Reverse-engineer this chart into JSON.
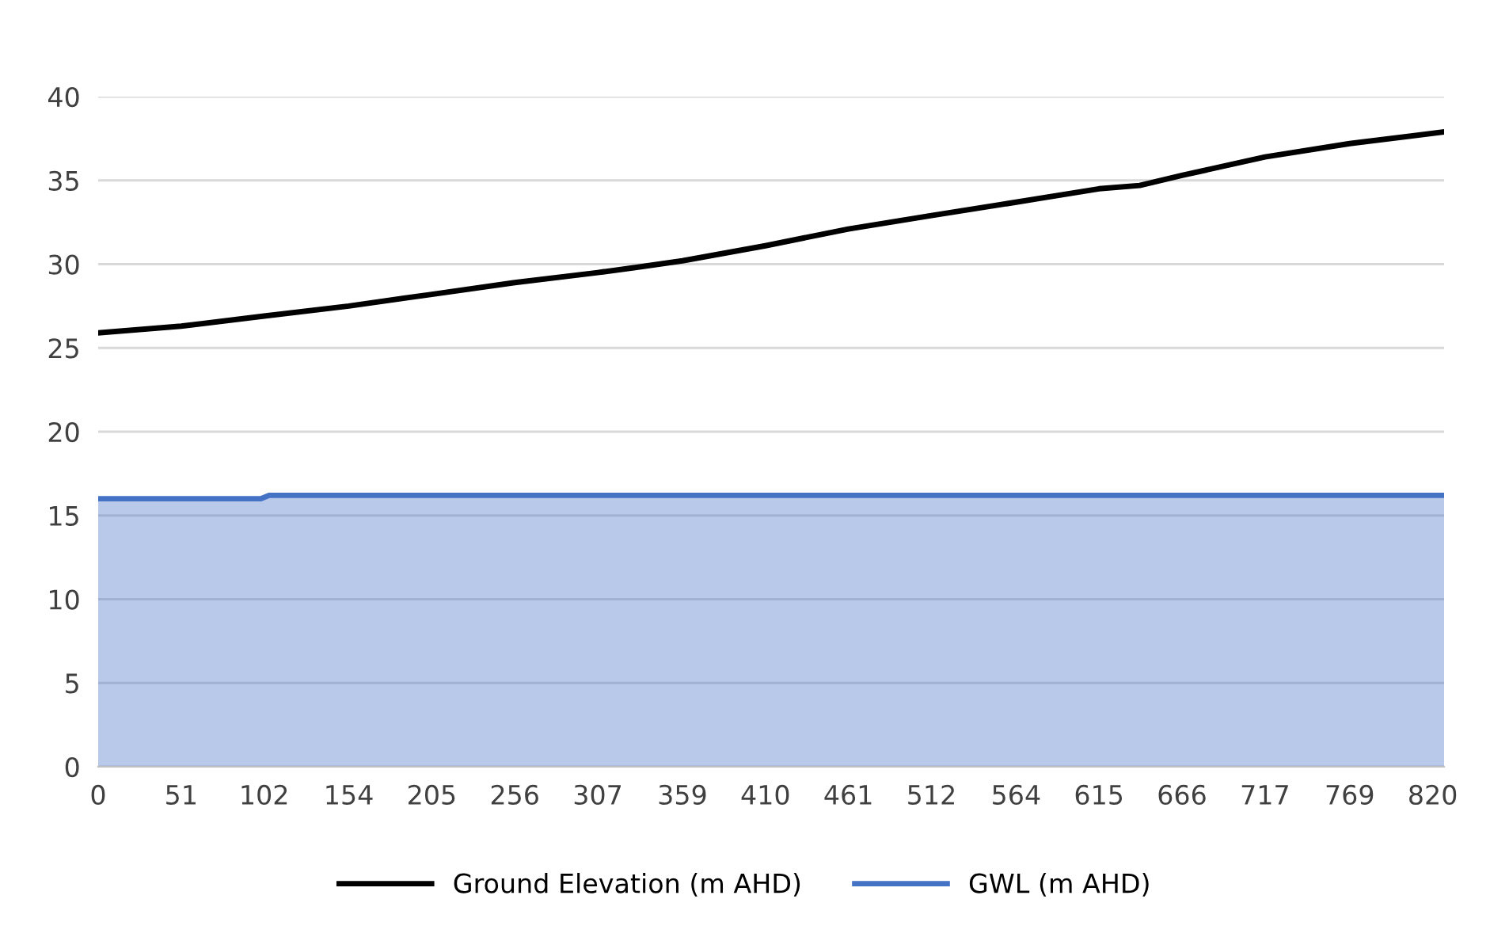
{
  "chart_data": {
    "type": "line",
    "series": [
      {
        "name": "Ground Elevation (m AHD)",
        "color": "#000000",
        "x": [
          0,
          51,
          102,
          154,
          205,
          256,
          307,
          330,
          359,
          410,
          461,
          512,
          564,
          615,
          640,
          666,
          717,
          769,
          827
        ],
        "values": [
          25.9,
          26.3,
          26.9,
          27.5,
          28.2,
          28.9,
          29.5,
          29.8,
          30.2,
          31.1,
          32.1,
          32.9,
          33.7,
          34.5,
          34.7,
          35.3,
          36.4,
          37.2,
          37.9
        ]
      },
      {
        "name": "GWL (m AHD)",
        "type": "area",
        "color": "#4472c4",
        "x": [
          0,
          100,
          105,
          827
        ],
        "values": [
          16.0,
          16.0,
          16.2,
          16.2
        ]
      }
    ],
    "xlim": [
      0,
      827
    ],
    "xticks": [
      0,
      51,
      102,
      154,
      205,
      256,
      307,
      359,
      410,
      461,
      512,
      564,
      615,
      666,
      717,
      769,
      820
    ],
    "ylim": [
      0,
      40
    ],
    "yticks": [
      0,
      5,
      10,
      15,
      20,
      25,
      30,
      35,
      40
    ],
    "grid": "y",
    "legend": "bottom",
    "marker": "none",
    "line_style": "solid"
  }
}
